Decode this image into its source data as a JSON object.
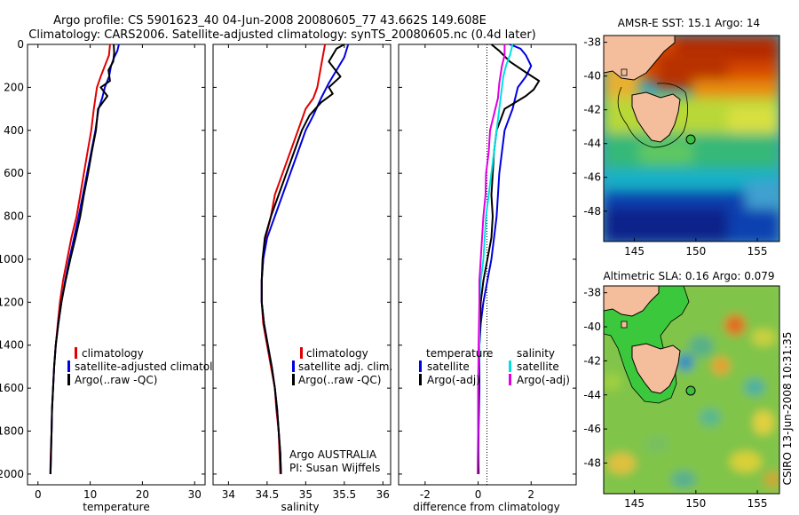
{
  "title_line1": "Argo profile: CS 5901623_40 04-Jun-2008 20080605_77 43.662S 149.608E",
  "title_line2": "Climatology: CARS2006. Satellite-adjusted climatology: synTS_20080605.nc (0.4d later)",
  "colors": {
    "climatology": "#e00000",
    "satellite": "#0000e0",
    "argo": "#000000",
    "satellite_salinity": "#00e0e0",
    "argo_salinity": "#e000e0"
  },
  "chart_data": [
    {
      "type": "line",
      "id": "temperature",
      "xlabel": "temperature",
      "ylabel": "",
      "xlim": [
        -2,
        32
      ],
      "ylim": [
        2050,
        0
      ],
      "xticks": [
        0,
        10,
        20,
        30
      ],
      "yticks": [
        0,
        200,
        400,
        600,
        800,
        1000,
        1200,
        1400,
        1600,
        1800,
        2000
      ],
      "legend": {
        "position": "lower-right",
        "entries": [
          "climatology",
          "satellite-adjusted climatology",
          "Argo(..raw -QC)"
        ]
      },
      "series": [
        {
          "name": "climatology",
          "color_key": "climatology",
          "points": [
            [
              13.8,
              0
            ],
            [
              13.6,
              50
            ],
            [
              12.8,
              100
            ],
            [
              12.0,
              150
            ],
            [
              11.3,
              200
            ],
            [
              10.7,
              300
            ],
            [
              10.2,
              400
            ],
            [
              9.5,
              500
            ],
            [
              8.8,
              600
            ],
            [
              8.1,
              700
            ],
            [
              7.4,
              800
            ],
            [
              6.4,
              900
            ],
            [
              5.6,
              1000
            ],
            [
              4.8,
              1100
            ],
            [
              4.2,
              1200
            ],
            [
              3.8,
              1300
            ],
            [
              3.4,
              1400
            ],
            [
              3.1,
              1500
            ],
            [
              2.9,
              1600
            ],
            [
              2.7,
              1700
            ],
            [
              2.6,
              1800
            ],
            [
              2.45,
              1900
            ],
            [
              2.35,
              2000
            ]
          ]
        },
        {
          "name": "satellite-adjusted climatology",
          "color_key": "satellite",
          "points": [
            [
              15.5,
              0
            ],
            [
              15.2,
              30
            ],
            [
              14.6,
              60
            ],
            [
              14.0,
              100
            ],
            [
              13.6,
              150
            ],
            [
              12.8,
              200
            ],
            [
              12.3,
              250
            ],
            [
              11.6,
              300
            ],
            [
              11.0,
              400
            ],
            [
              10.2,
              500
            ],
            [
              9.4,
              600
            ],
            [
              8.6,
              700
            ],
            [
              7.8,
              800
            ],
            [
              6.9,
              900
            ],
            [
              6.0,
              1000
            ],
            [
              5.2,
              1100
            ],
            [
              4.5,
              1200
            ],
            [
              3.9,
              1300
            ],
            [
              3.4,
              1400
            ],
            [
              3.1,
              1500
            ],
            [
              2.9,
              1600
            ],
            [
              2.7,
              1700
            ],
            [
              2.6,
              1800
            ],
            [
              2.5,
              1900
            ],
            [
              2.4,
              2000
            ]
          ]
        },
        {
          "name": "Argo(..raw -QC)",
          "color_key": "argo",
          "points": [
            [
              14.5,
              0
            ],
            [
              14.6,
              40
            ],
            [
              14.4,
              80
            ],
            [
              13.5,
              120
            ],
            [
              13.8,
              170
            ],
            [
              12.0,
              200
            ],
            [
              13.3,
              240
            ],
            [
              11.5,
              300
            ],
            [
              11.1,
              400
            ],
            [
              10.3,
              500
            ],
            [
              9.6,
              600
            ],
            [
              8.8,
              700
            ],
            [
              8.1,
              800
            ],
            [
              7.2,
              900
            ],
            [
              6.2,
              1000
            ],
            [
              5.3,
              1100
            ],
            [
              4.5,
              1200
            ],
            [
              3.9,
              1300
            ],
            [
              3.4,
              1400
            ],
            [
              3.1,
              1500
            ],
            [
              2.9,
              1600
            ],
            [
              2.7,
              1700
            ],
            [
              2.6,
              1800
            ],
            [
              2.5,
              1900
            ],
            [
              2.4,
              2000
            ]
          ]
        }
      ]
    },
    {
      "type": "line",
      "id": "salinity",
      "xlabel": "salinity",
      "ylabel": "",
      "xlim": [
        33.8,
        36.1
      ],
      "ylim": [
        2050,
        0
      ],
      "xticks": [
        34,
        34.5,
        35,
        35.5,
        36
      ],
      "yticks": [],
      "legend": {
        "position": "lower-right",
        "entries": [
          "climatology",
          "satellite adj. clim.",
          "Argo(..raw -QC)"
        ]
      },
      "annotations": [
        "Argo AUSTRALIA",
        "PI: Susan Wijffels"
      ],
      "series": [
        {
          "name": "climatology",
          "color_key": "climatology",
          "points": [
            [
              35.25,
              0
            ],
            [
              35.2,
              100
            ],
            [
              35.15,
              200
            ],
            [
              35.1,
              250
            ],
            [
              35.0,
              300
            ],
            [
              34.9,
              400
            ],
            [
              34.8,
              500
            ],
            [
              34.7,
              600
            ],
            [
              34.6,
              700
            ],
            [
              34.55,
              800
            ],
            [
              34.48,
              900
            ],
            [
              34.45,
              1000
            ],
            [
              34.43,
              1100
            ],
            [
              34.43,
              1200
            ],
            [
              34.45,
              1300
            ],
            [
              34.5,
              1400
            ],
            [
              34.55,
              1500
            ],
            [
              34.6,
              1600
            ],
            [
              34.62,
              1700
            ],
            [
              34.65,
              1800
            ],
            [
              34.66,
              1900
            ],
            [
              34.67,
              2000
            ]
          ]
        },
        {
          "name": "satellite adj. clim.",
          "color_key": "satellite",
          "points": [
            [
              35.55,
              0
            ],
            [
              35.5,
              60
            ],
            [
              35.4,
              120
            ],
            [
              35.3,
              180
            ],
            [
              35.2,
              250
            ],
            [
              35.1,
              330
            ],
            [
              35.0,
              400
            ],
            [
              34.9,
              500
            ],
            [
              34.8,
              600
            ],
            [
              34.7,
              700
            ],
            [
              34.6,
              800
            ],
            [
              34.5,
              900
            ],
            [
              34.45,
              1000
            ],
            [
              34.43,
              1100
            ],
            [
              34.43,
              1200
            ],
            [
              34.46,
              1300
            ],
            [
              34.51,
              1400
            ],
            [
              34.56,
              1500
            ],
            [
              34.6,
              1600
            ],
            [
              34.63,
              1700
            ],
            [
              34.65,
              1800
            ],
            [
              34.67,
              1900
            ],
            [
              34.68,
              2000
            ]
          ]
        },
        {
          "name": "Argo(..raw -QC)",
          "color_key": "argo",
          "points": [
            [
              35.5,
              0
            ],
            [
              35.4,
              20
            ],
            [
              35.3,
              80
            ],
            [
              35.45,
              150
            ],
            [
              35.3,
              200
            ],
            [
              35.35,
              230
            ],
            [
              35.2,
              270
            ],
            [
              35.05,
              330
            ],
            [
              34.95,
              400
            ],
            [
              34.85,
              500
            ],
            [
              34.75,
              600
            ],
            [
              34.65,
              700
            ],
            [
              34.55,
              800
            ],
            [
              34.47,
              900
            ],
            [
              34.44,
              1000
            ],
            [
              34.43,
              1100
            ],
            [
              34.43,
              1200
            ],
            [
              34.46,
              1300
            ],
            [
              34.51,
              1400
            ],
            [
              34.56,
              1500
            ],
            [
              34.6,
              1600
            ],
            [
              34.63,
              1700
            ],
            [
              34.65,
              1800
            ],
            [
              34.67,
              1900
            ],
            [
              34.68,
              2000
            ]
          ]
        }
      ]
    },
    {
      "type": "line",
      "id": "difference",
      "xlabel": "difference from climatology",
      "ylabel": "",
      "xlim": [
        -3,
        3.7
      ],
      "ylim": [
        2050,
        0
      ],
      "xticks": [
        -2,
        0,
        2
      ],
      "yticks": [],
      "legend": {
        "position": "lower-center",
        "group_titles": [
          "temperature",
          "salinity"
        ],
        "entries": [
          "satellite",
          "Argo(-adj)",
          "satellite",
          "Argo(-adj)"
        ]
      },
      "series": [
        {
          "name": "satellite",
          "group": "temperature",
          "color_key": "satellite",
          "points": [
            [
              1.2,
              0
            ],
            [
              1.6,
              20
            ],
            [
              1.8,
              50
            ],
            [
              2.0,
              100
            ],
            [
              1.8,
              150
            ],
            [
              1.5,
              200
            ],
            [
              1.3,
              300
            ],
            [
              1.0,
              400
            ],
            [
              0.9,
              500
            ],
            [
              0.8,
              600
            ],
            [
              0.75,
              700
            ],
            [
              0.7,
              800
            ],
            [
              0.6,
              900
            ],
            [
              0.5,
              1000
            ],
            [
              0.35,
              1100
            ],
            [
              0.2,
              1200
            ],
            [
              0.1,
              1300
            ],
            [
              0.05,
              1400
            ],
            [
              0.05,
              1600
            ],
            [
              0.02,
              1800
            ],
            [
              0.0,
              2000
            ]
          ]
        },
        {
          "name": "Argo(-adj)",
          "group": "temperature",
          "color_key": "argo",
          "points": [
            [
              0.5,
              0
            ],
            [
              0.8,
              30
            ],
            [
              1.2,
              80
            ],
            [
              1.8,
              130
            ],
            [
              2.3,
              170
            ],
            [
              2.1,
              210
            ],
            [
              1.8,
              240
            ],
            [
              1.0,
              300
            ],
            [
              0.7,
              400
            ],
            [
              0.6,
              500
            ],
            [
              0.55,
              600
            ],
            [
              0.5,
              700
            ],
            [
              0.55,
              800
            ],
            [
              0.5,
              900
            ],
            [
              0.35,
              1000
            ],
            [
              0.2,
              1100
            ],
            [
              0.1,
              1200
            ],
            [
              0.05,
              1400
            ],
            [
              0.02,
              1600
            ],
            [
              0.0,
              1800
            ],
            [
              0.02,
              2000
            ]
          ]
        },
        {
          "name": "satellite",
          "group": "salinity",
          "color_key": "satellite_salinity",
          "points": [
            [
              1.3,
              0
            ],
            [
              1.2,
              50
            ],
            [
              1.05,
              100
            ],
            [
              0.95,
              150
            ],
            [
              0.9,
              200
            ],
            [
              0.8,
              300
            ],
            [
              0.7,
              400
            ],
            [
              0.6,
              500
            ],
            [
              0.5,
              600
            ],
            [
              0.4,
              700
            ],
            [
              0.3,
              800
            ],
            [
              0.25,
              900
            ],
            [
              0.2,
              1000
            ],
            [
              0.1,
              1100
            ],
            [
              0.05,
              1200
            ],
            [
              0.05,
              1400
            ],
            [
              0.0,
              1600
            ],
            [
              0.0,
              1800
            ],
            [
              -0.02,
              2000
            ]
          ]
        },
        {
          "name": "Argo(-adj)",
          "group": "salinity",
          "color_key": "argo_salinity",
          "points": [
            [
              1.0,
              0
            ],
            [
              1.0,
              50
            ],
            [
              0.9,
              100
            ],
            [
              0.8,
              180
            ],
            [
              0.75,
              250
            ],
            [
              0.55,
              350
            ],
            [
              0.45,
              400
            ],
            [
              0.4,
              500
            ],
            [
              0.3,
              600
            ],
            [
              0.28,
              700
            ],
            [
              0.2,
              800
            ],
            [
              0.15,
              900
            ],
            [
              0.1,
              1000
            ],
            [
              0.05,
              1100
            ],
            [
              0.05,
              1200
            ],
            [
              0.02,
              1400
            ],
            [
              0.0,
              1600
            ],
            [
              0.0,
              1800
            ],
            [
              -0.02,
              2000
            ]
          ]
        }
      ]
    },
    {
      "type": "heatmap",
      "id": "sst_map",
      "title": "AMSR-E SST: 15.1 Argo: 14",
      "xlim": [
        142.5,
        156.8
      ],
      "ylim": [
        -49.8,
        -37.6
      ],
      "xticks": [
        145,
        150,
        155
      ],
      "yticks": [
        -38,
        -40,
        -42,
        -44,
        -46,
        -48
      ],
      "marker": {
        "lon": 149.608,
        "lat": -43.662
      }
    },
    {
      "type": "heatmap",
      "id": "sla_map",
      "title": "Altimetric SLA: 0.16 Argo: 0.079",
      "xlim": [
        142.5,
        156.8
      ],
      "ylim": [
        -49.8,
        -37.6
      ],
      "xticks": [
        145,
        150,
        155
      ],
      "yticks": [
        -38,
        -40,
        -42,
        -44,
        -46,
        -48
      ],
      "marker": {
        "lon": 149.608,
        "lat": -43.662
      }
    }
  ],
  "side_label": "CSIRO 13-Jun-2008 10:31:35"
}
